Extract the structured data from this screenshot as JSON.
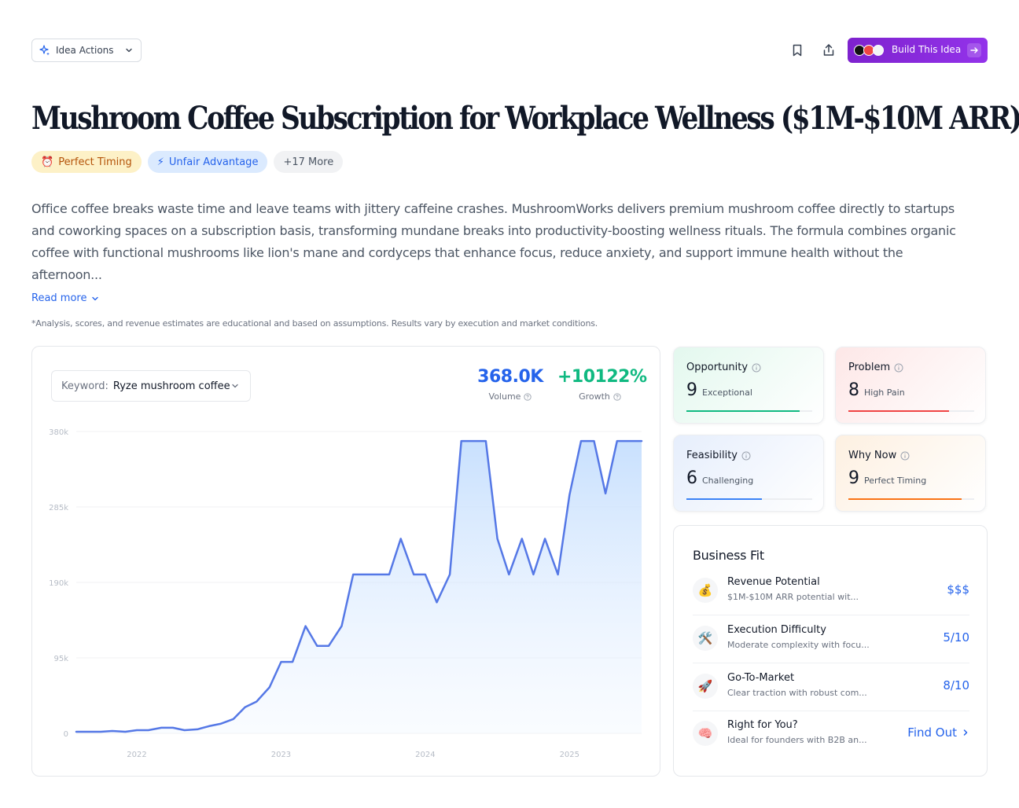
{
  "toolbar": {
    "idea_actions_label": "Idea Actions",
    "build_label": "Build This Idea"
  },
  "title": "Mushroom Coffee Subscription for Workplace Wellness ($1M-$10M ARR)",
  "tags": [
    {
      "icon": "alarm-clock-icon",
      "glyph": "⏰",
      "label": "Perfect Timing"
    },
    {
      "icon": "lightning-icon",
      "glyph": "⚡",
      "label": "Unfair Advantage"
    },
    {
      "label": "+17 More"
    }
  ],
  "description_lines": [
    "Office coffee breaks waste time and leave teams with jittery caffeine crashes. MushroomWorks delivers premium mushroom coffee directly to startups",
    "and coworking spaces on a subscription basis, transforming mundane breaks into productivity-boosting wellness rituals. The formula combines organic",
    "coffee with functional mushrooms like lion's mane and cordyceps that enhance focus, reduce anxiety, and support immune health without the",
    "afternoon..."
  ],
  "read_more_label": "Read more",
  "disclaimer": "*Analysis, scores, and revenue estimates are educational and based on assumptions. Results vary by execution and market conditions.",
  "keyword": {
    "label": "Keyword:",
    "value": "Ryze mushroom coffee"
  },
  "metrics": {
    "volume_value": "368.0K",
    "volume_label": "Volume",
    "growth_value": "+10122%",
    "growth_label": "Growth"
  },
  "chart_data": {
    "type": "area",
    "ylim": [
      0,
      380
    ],
    "y_ticks": [
      {
        "value": 0,
        "label": "0"
      },
      {
        "value": 95,
        "label": "95k"
      },
      {
        "value": 190,
        "label": "190k"
      },
      {
        "value": 285,
        "label": "285k"
      },
      {
        "value": 380,
        "label": "380k"
      }
    ],
    "x_ticks": [
      {
        "x": 2022.0,
        "label": "2022"
      },
      {
        "x": 2023.0,
        "label": "2023"
      },
      {
        "x": 2024.0,
        "label": "2024"
      },
      {
        "x": 2025.0,
        "label": "2025"
      }
    ],
    "x": [
      2021.58,
      2021.67,
      2021.75,
      2021.83,
      2021.92,
      2022.0,
      2022.08,
      2022.17,
      2022.25,
      2022.33,
      2022.42,
      2022.5,
      2022.58,
      2022.67,
      2022.75,
      2022.83,
      2022.92,
      2023.0,
      2023.08,
      2023.17,
      2023.25,
      2023.33,
      2023.42,
      2023.5,
      2023.58,
      2023.67,
      2023.75,
      2023.83,
      2023.92,
      2024.0,
      2024.08,
      2024.17,
      2024.25,
      2024.33,
      2024.42,
      2024.5,
      2024.58,
      2024.67,
      2024.75,
      2024.83,
      2024.92,
      2025.0,
      2025.08,
      2025.17,
      2025.25,
      2025.33,
      2025.42,
      2025.5
    ],
    "values": [
      2,
      2,
      2,
      3,
      2,
      4,
      4,
      7,
      7,
      4,
      5,
      9,
      12,
      18,
      33,
      40,
      58,
      90,
      90,
      135,
      110,
      110,
      135,
      200,
      200,
      200,
      200,
      245,
      200,
      200,
      165,
      200,
      368,
      368,
      368,
      245,
      200,
      245,
      200,
      245,
      200,
      300,
      368,
      368,
      302,
      368,
      368,
      368
    ]
  },
  "scores": [
    {
      "name": "Opportunity",
      "value": "9",
      "level": "Exceptional",
      "fraction": 0.9,
      "color": "#10b981"
    },
    {
      "name": "Problem",
      "value": "8",
      "level": "High Pain",
      "fraction": 0.8,
      "color": "#ef4444"
    },
    {
      "name": "Feasibility",
      "value": "6",
      "level": "Challenging",
      "fraction": 0.6,
      "color": "#3b82f6"
    },
    {
      "name": "Why Now",
      "value": "9",
      "level": "Perfect Timing",
      "fraction": 0.9,
      "color": "#f97316"
    }
  ],
  "business_fit": {
    "title": "Business Fit",
    "rows": [
      {
        "icon": "money-bag-icon",
        "glyph": "💰",
        "title": "Revenue Potential",
        "subtitle": "$1M-$10M ARR potential wit...",
        "value": "$$$"
      },
      {
        "icon": "tools-icon",
        "glyph": "🛠️",
        "title": "Execution Difficulty",
        "subtitle": "Moderate complexity with focu...",
        "value": "5/10"
      },
      {
        "icon": "rocket-icon",
        "glyph": "🚀",
        "title": "Go-To-Market",
        "subtitle": "Clear traction with robust com...",
        "value": "8/10"
      },
      {
        "icon": "brain-icon",
        "glyph": "🧠",
        "title": "Right for You?",
        "subtitle": "Ideal for founders with B2B an...",
        "value": "Find Out"
      }
    ]
  }
}
